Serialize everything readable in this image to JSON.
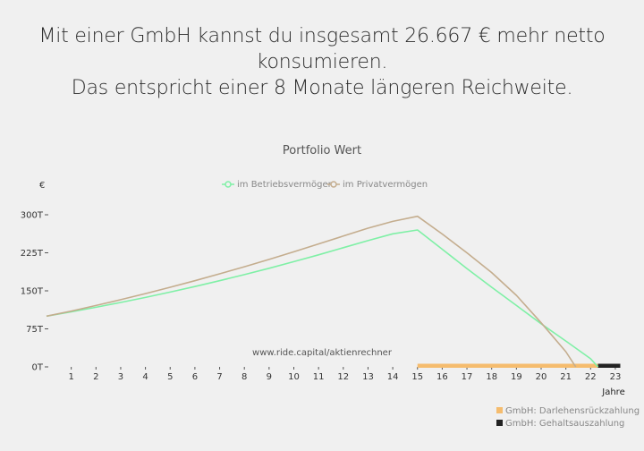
{
  "headline": {
    "line1": "Mit einer GmbH kannst du insgesamt 26.667 € mehr netto",
    "line2": "konsumieren.",
    "line3": "Das entspricht einer 8 Monate längeren Reichweite."
  },
  "chart_data": {
    "type": "line",
    "title": "Portfolio Wert",
    "ylabel": "€",
    "xlabel": "Jahre",
    "watermark": "www.ride.capital/aktienrechner",
    "ylim": [
      0,
      300000
    ],
    "xlim": [
      0,
      23
    ],
    "y_ticks": [
      {
        "value": 0,
        "label": "0T"
      },
      {
        "value": 75000,
        "label": "75T"
      },
      {
        "value": 150000,
        "label": "150T"
      },
      {
        "value": 225000,
        "label": "225T"
      },
      {
        "value": 300000,
        "label": "300T"
      }
    ],
    "x_ticks": [
      1,
      2,
      3,
      4,
      5,
      6,
      7,
      8,
      9,
      10,
      11,
      12,
      13,
      14,
      15,
      16,
      17,
      18,
      19,
      20,
      21,
      22,
      23
    ],
    "series": [
      {
        "name": "im Betriebsvermögen",
        "color": "#7ff0a6",
        "points": [
          [
            0,
            100000
          ],
          [
            1,
            108500
          ],
          [
            2,
            117500
          ],
          [
            3,
            127000
          ],
          [
            4,
            137000
          ],
          [
            5,
            147500
          ],
          [
            6,
            158500
          ],
          [
            7,
            170000
          ],
          [
            8,
            182000
          ],
          [
            9,
            194500
          ],
          [
            10,
            207500
          ],
          [
            11,
            221000
          ],
          [
            12,
            235000
          ],
          [
            13,
            249000
          ],
          [
            14,
            262500
          ],
          [
            15,
            270000
          ],
          [
            16,
            232000
          ],
          [
            17,
            194000
          ],
          [
            18,
            157000
          ],
          [
            19,
            121000
          ],
          [
            20,
            85000
          ],
          [
            21,
            51000
          ],
          [
            22,
            16000
          ],
          [
            22.3,
            0
          ]
        ]
      },
      {
        "name": "im Privatvermögen",
        "color": "#c4ad8e",
        "points": [
          [
            0,
            100000
          ],
          [
            1,
            110000
          ],
          [
            2,
            121000
          ],
          [
            3,
            132500
          ],
          [
            4,
            144500
          ],
          [
            5,
            157000
          ],
          [
            6,
            170000
          ],
          [
            7,
            183500
          ],
          [
            8,
            197500
          ],
          [
            9,
            212000
          ],
          [
            10,
            227000
          ],
          [
            11,
            242500
          ],
          [
            12,
            258000
          ],
          [
            13,
            273500
          ],
          [
            14,
            287000
          ],
          [
            15,
            297000
          ],
          [
            16,
            262000
          ],
          [
            17,
            225000
          ],
          [
            18,
            186000
          ],
          [
            19,
            141000
          ],
          [
            20,
            87000
          ],
          [
            21,
            30000
          ],
          [
            21.4,
            0
          ]
        ]
      }
    ],
    "bar_legend": [
      {
        "name": "GmbH: Darlehensrückzahlung",
        "color": "#f5bc6e",
        "from": 15,
        "to": 22.3
      },
      {
        "name": "GmbH: Gehaltsauszahlung",
        "color": "#222222",
        "from": 22.3,
        "to": 23.2
      }
    ]
  }
}
